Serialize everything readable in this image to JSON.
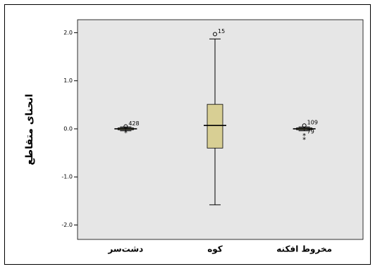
{
  "chart_data": {
    "type": "box",
    "y_label": "انحنای متقاطع",
    "categories": [
      "دشت‌سر",
      "کوه",
      "مخروط افکنه"
    ],
    "box_color": "#d8cf94",
    "ylim": [
      -2.3,
      2.27
    ],
    "yticks": [
      {
        "value": 2,
        "label": "2.0"
      },
      {
        "value": 1,
        "label": "1.0"
      },
      {
        "value": 0,
        "label": "0.0"
      },
      {
        "value": -1,
        "label": "-1.0"
      },
      {
        "value": -2,
        "label": "-2.0"
      }
    ],
    "boxes": [
      {
        "min": -0.04,
        "q1": -0.02,
        "median": 0,
        "q3": 0.02,
        "max": 0.04,
        "outliers": [
          {
            "value": 0.05,
            "label": "428",
            "marker": "circle"
          },
          {
            "value": -0.06,
            "marker": "star"
          }
        ]
      },
      {
        "min": -1.58,
        "q1": -0.4,
        "median": 0.07,
        "q3": 0.51,
        "max": 1.87,
        "outliers": [
          {
            "value": 1.97,
            "label": "15",
            "marker": "circle"
          }
        ]
      },
      {
        "min": -0.04,
        "q1": -0.02,
        "median": 0,
        "q3": 0.02,
        "max": 0.04,
        "outliers": [
          {
            "value": 0.07,
            "label": "109",
            "marker": "circle"
          },
          {
            "value": -0.12,
            "label": "79",
            "marker": "star"
          },
          {
            "value": -0.2,
            "marker": "star"
          }
        ]
      }
    ]
  }
}
